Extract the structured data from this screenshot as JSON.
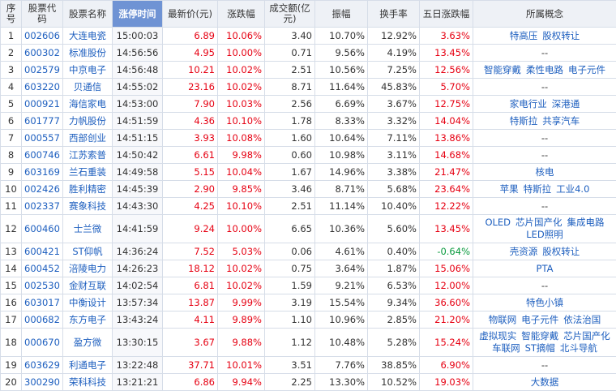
{
  "headers": [
    "序号",
    "股票代码",
    "股票名称",
    "涨停时间",
    "最新价(元)",
    "涨跌幅",
    "成交额(亿元)",
    "振幅",
    "换手率",
    "五日涨跌幅",
    "所属概念"
  ],
  "sorted_column": "涨停时间",
  "colors": {
    "red": "#e60012",
    "green": "#0a9a3e",
    "link": "#1e5fbf",
    "header_sorted": "#6f93d4"
  },
  "rows": [
    {
      "idx": "1",
      "code": "002606",
      "name": "大连电瓷",
      "time": "15:00:03",
      "price": "6.89",
      "change": "10.06%",
      "amount": "3.40",
      "amplitude": "10.70%",
      "turnover": "12.92%",
      "five_day": "3.63%",
      "five_day_dir": "up",
      "concepts": [
        "特高压",
        "股权转让"
      ]
    },
    {
      "idx": "2",
      "code": "600302",
      "name": "标准股份",
      "time": "14:56:56",
      "price": "4.95",
      "change": "10.00%",
      "amount": "0.71",
      "amplitude": "9.56%",
      "turnover": "4.19%",
      "five_day": "13.45%",
      "five_day_dir": "up",
      "concepts": [
        "--"
      ]
    },
    {
      "idx": "3",
      "code": "002579",
      "name": "中京电子",
      "time": "14:56:48",
      "price": "10.21",
      "change": "10.02%",
      "amount": "2.51",
      "amplitude": "10.56%",
      "turnover": "7.25%",
      "five_day": "12.56%",
      "five_day_dir": "up",
      "concepts": [
        "智能穿戴",
        "柔性电路",
        "电子元件"
      ]
    },
    {
      "idx": "4",
      "code": "603220",
      "name": "贝通信",
      "time": "14:55:02",
      "price": "23.16",
      "change": "10.02%",
      "amount": "8.71",
      "amplitude": "11.64%",
      "turnover": "45.83%",
      "five_day": "5.70%",
      "five_day_dir": "up",
      "concepts": [
        "--"
      ]
    },
    {
      "idx": "5",
      "code": "000921",
      "name": "海信家电",
      "time": "14:53:00",
      "price": "7.90",
      "change": "10.03%",
      "amount": "2.56",
      "amplitude": "6.69%",
      "turnover": "3.67%",
      "five_day": "12.75%",
      "five_day_dir": "up",
      "concepts": [
        "家电行业",
        "深港通"
      ]
    },
    {
      "idx": "6",
      "code": "601777",
      "name": "力帆股份",
      "time": "14:51:59",
      "price": "4.36",
      "change": "10.10%",
      "amount": "1.78",
      "amplitude": "8.33%",
      "turnover": "3.32%",
      "five_day": "14.04%",
      "five_day_dir": "up",
      "concepts": [
        "特斯拉",
        "共享汽车"
      ]
    },
    {
      "idx": "7",
      "code": "000557",
      "name": "西部创业",
      "time": "14:51:15",
      "price": "3.93",
      "change": "10.08%",
      "amount": "1.60",
      "amplitude": "10.64%",
      "turnover": "7.11%",
      "five_day": "13.86%",
      "five_day_dir": "up",
      "concepts": [
        "--"
      ]
    },
    {
      "idx": "8",
      "code": "600746",
      "name": "江苏索普",
      "time": "14:50:42",
      "price": "6.61",
      "change": "9.98%",
      "amount": "0.60",
      "amplitude": "10.98%",
      "turnover": "3.11%",
      "five_day": "14.68%",
      "five_day_dir": "up",
      "concepts": [
        "--"
      ]
    },
    {
      "idx": "9",
      "code": "603169",
      "name": "兰石重装",
      "time": "14:49:58",
      "price": "5.15",
      "change": "10.04%",
      "amount": "1.67",
      "amplitude": "14.96%",
      "turnover": "3.38%",
      "five_day": "21.47%",
      "five_day_dir": "up",
      "concepts": [
        "核电"
      ]
    },
    {
      "idx": "10",
      "code": "002426",
      "name": "胜利精密",
      "time": "14:45:39",
      "price": "2.90",
      "change": "9.85%",
      "amount": "3.46",
      "amplitude": "8.71%",
      "turnover": "5.68%",
      "five_day": "23.64%",
      "five_day_dir": "up",
      "concepts": [
        "苹果",
        "特斯拉",
        "工业4.0"
      ]
    },
    {
      "idx": "11",
      "code": "002337",
      "name": "赛象科技",
      "time": "14:43:30",
      "price": "4.25",
      "change": "10.10%",
      "amount": "2.51",
      "amplitude": "11.14%",
      "turnover": "10.40%",
      "five_day": "12.22%",
      "five_day_dir": "up",
      "concepts": [
        "--"
      ]
    },
    {
      "idx": "12",
      "code": "600460",
      "name": "士兰微",
      "time": "14:41:59",
      "price": "9.24",
      "change": "10.00%",
      "amount": "6.65",
      "amplitude": "10.36%",
      "turnover": "5.60%",
      "five_day": "13.45%",
      "five_day_dir": "up",
      "concepts": [
        "OLED",
        "芯片国产化",
        "集成电路",
        "LED照明"
      ],
      "tall": true
    },
    {
      "idx": "13",
      "code": "600421",
      "name": "ST仰帆",
      "time": "14:36:24",
      "price": "7.52",
      "change": "5.03%",
      "amount": "0.06",
      "amplitude": "4.61%",
      "turnover": "0.40%",
      "five_day": "-0.64%",
      "five_day_dir": "down",
      "concepts": [
        "壳资源",
        "股权转让"
      ]
    },
    {
      "idx": "14",
      "code": "600452",
      "name": "涪陵电力",
      "time": "14:26:23",
      "price": "18.12",
      "change": "10.02%",
      "amount": "0.75",
      "amplitude": "3.64%",
      "turnover": "1.87%",
      "five_day": "15.06%",
      "five_day_dir": "up",
      "concepts": [
        "PTA"
      ]
    },
    {
      "idx": "15",
      "code": "002530",
      "name": "金财互联",
      "time": "14:02:54",
      "price": "6.81",
      "change": "10.02%",
      "amount": "1.59",
      "amplitude": "9.21%",
      "turnover": "6.53%",
      "five_day": "12.00%",
      "five_day_dir": "up",
      "concepts": [
        "--"
      ]
    },
    {
      "idx": "16",
      "code": "603017",
      "name": "中衡设计",
      "time": "13:57:34",
      "price": "13.87",
      "change": "9.99%",
      "amount": "3.19",
      "amplitude": "15.54%",
      "turnover": "9.34%",
      "five_day": "36.60%",
      "five_day_dir": "up",
      "concepts": [
        "特色小镇"
      ]
    },
    {
      "idx": "17",
      "code": "000682",
      "name": "东方电子",
      "time": "13:43:24",
      "price": "4.11",
      "change": "9.89%",
      "amount": "1.10",
      "amplitude": "10.96%",
      "turnover": "2.85%",
      "five_day": "21.20%",
      "five_day_dir": "up",
      "concepts": [
        "物联网",
        "电子元件",
        "依法治国"
      ]
    },
    {
      "idx": "18",
      "code": "000670",
      "name": "盈方微",
      "time": "13:30:15",
      "price": "3.67",
      "change": "9.88%",
      "amount": "1.12",
      "amplitude": "10.48%",
      "turnover": "5.28%",
      "five_day": "15.24%",
      "five_day_dir": "up",
      "concepts": [
        "虚拟现实",
        "智能穿戴",
        "芯片国产化",
        "车联网",
        "ST摘帽",
        "北斗导航"
      ],
      "tall": true
    },
    {
      "idx": "19",
      "code": "603629",
      "name": "利通电子",
      "time": "13:22:48",
      "price": "37.71",
      "change": "10.01%",
      "amount": "3.51",
      "amplitude": "7.76%",
      "turnover": "38.85%",
      "five_day": "6.90%",
      "five_day_dir": "up",
      "concepts": [
        "--"
      ]
    },
    {
      "idx": "20",
      "code": "300290",
      "name": "荣科科技",
      "time": "13:21:21",
      "price": "6.86",
      "change": "9.94%",
      "amount": "2.25",
      "amplitude": "13.30%",
      "turnover": "10.52%",
      "five_day": "19.03%",
      "five_day_dir": "up",
      "concepts": [
        "大数据"
      ]
    }
  ]
}
